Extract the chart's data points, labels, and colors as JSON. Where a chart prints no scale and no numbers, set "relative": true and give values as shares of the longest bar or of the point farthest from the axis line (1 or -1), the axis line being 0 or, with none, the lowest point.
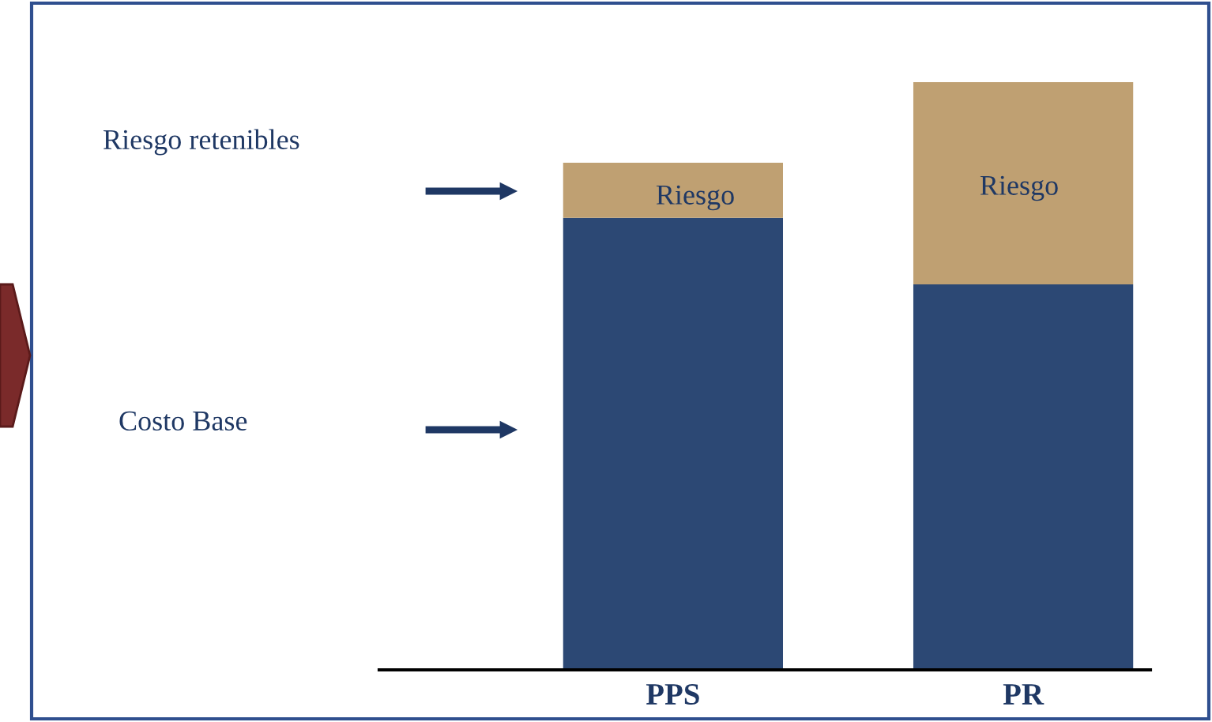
{
  "chart_data": {
    "type": "bar",
    "stacked": true,
    "relative": true,
    "categories": [
      "PPS",
      "PR"
    ],
    "series": [
      {
        "color": "#2c4874",
        "values": [
          0.769,
          0.656
        ]
      },
      {
        "color": "#bfa072",
        "values": [
          0.094,
          0.344
        ]
      }
    ],
    "annotations": [
      "Riesgo retenibles",
      "Costo Base",
      "Riesgo",
      "Riesgo"
    ],
    "grid": false,
    "legend": false
  }
}
